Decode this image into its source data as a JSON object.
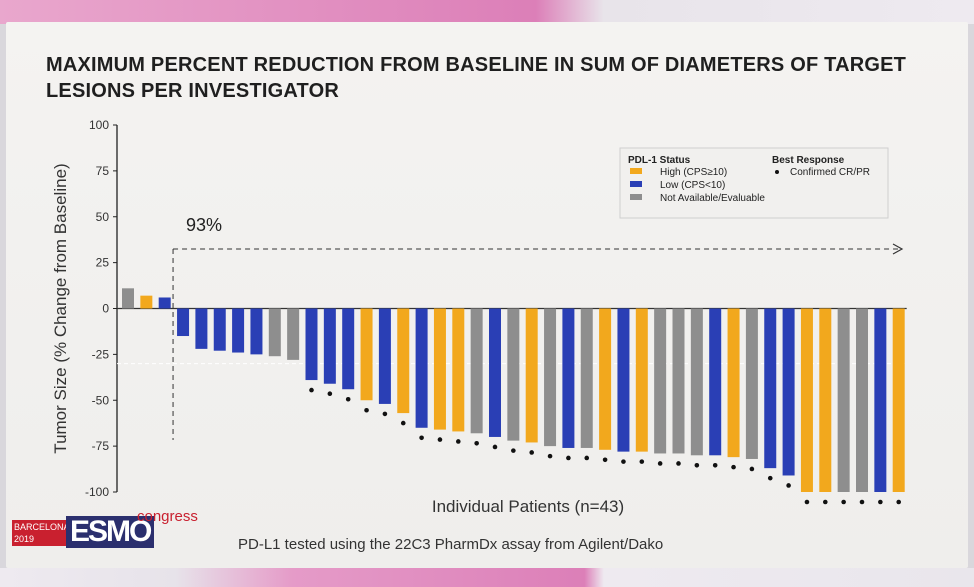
{
  "slide": {
    "title_line1": "MAXIMUM PERCENT REDUCTION FROM BASELINE IN SUM OF DIAMETERS OF TARGET",
    "title_line2": "LESIONS PER INVESTIGATOR",
    "footnote": "PD-L1 tested using the 22C3 PharmDx assay from Agilent/Dako",
    "logo": {
      "city": "BARCELONA",
      "year": "2019",
      "brand": "ESMO",
      "suffix": "congress"
    }
  },
  "colors": {
    "high": "#f2a81d",
    "low": "#2a3fb5",
    "na": "#8e8e8e",
    "dot": "#111111"
  },
  "chart_data": {
    "type": "bar",
    "ylabel": "Tumor Size (% Change from Baseline)",
    "xlabel": "Individual Patients (n=43)",
    "ylim": [
      -100,
      100
    ],
    "yticks": [
      100,
      75,
      50,
      25,
      0,
      -25,
      -50,
      -75,
      -100
    ],
    "annotation": "93%",
    "legend": {
      "placement": "top-right",
      "status_title": "PDL-1 Status",
      "response_title": "Best Response",
      "items": [
        {
          "label": "High (CPS≥10)",
          "status": "high"
        },
        {
          "label": "Low (CPS<10)",
          "status": "low"
        },
        {
          "label": "Not Available/Evaluable",
          "status": "na"
        }
      ],
      "response_item": "Confirmed CR/PR"
    },
    "bars": [
      {
        "value": 11,
        "status": "na",
        "response": false
      },
      {
        "value": 7,
        "status": "high",
        "response": false
      },
      {
        "value": 6,
        "status": "low",
        "response": false
      },
      {
        "value": -15,
        "status": "low",
        "response": false
      },
      {
        "value": -22,
        "status": "low",
        "response": false
      },
      {
        "value": -23,
        "status": "low",
        "response": false
      },
      {
        "value": -24,
        "status": "low",
        "response": false
      },
      {
        "value": -25,
        "status": "low",
        "response": false
      },
      {
        "value": -26,
        "status": "na",
        "response": false
      },
      {
        "value": -28,
        "status": "na",
        "response": false
      },
      {
        "value": -39,
        "status": "low",
        "response": true
      },
      {
        "value": -41,
        "status": "low",
        "response": true
      },
      {
        "value": -44,
        "status": "low",
        "response": true
      },
      {
        "value": -50,
        "status": "high",
        "response": true
      },
      {
        "value": -52,
        "status": "low",
        "response": true
      },
      {
        "value": -57,
        "status": "high",
        "response": true
      },
      {
        "value": -65,
        "status": "low",
        "response": true
      },
      {
        "value": -66,
        "status": "high",
        "response": true
      },
      {
        "value": -67,
        "status": "high",
        "response": true
      },
      {
        "value": -68,
        "status": "na",
        "response": true
      },
      {
        "value": -70,
        "status": "low",
        "response": true
      },
      {
        "value": -72,
        "status": "na",
        "response": true
      },
      {
        "value": -73,
        "status": "high",
        "response": true
      },
      {
        "value": -75,
        "status": "na",
        "response": true
      },
      {
        "value": -76,
        "status": "low",
        "response": true
      },
      {
        "value": -76,
        "status": "na",
        "response": true
      },
      {
        "value": -77,
        "status": "high",
        "response": true
      },
      {
        "value": -78,
        "status": "low",
        "response": true
      },
      {
        "value": -78,
        "status": "high",
        "response": true
      },
      {
        "value": -79,
        "status": "na",
        "response": true
      },
      {
        "value": -79,
        "status": "na",
        "response": true
      },
      {
        "value": -80,
        "status": "na",
        "response": true
      },
      {
        "value": -80,
        "status": "low",
        "response": true
      },
      {
        "value": -81,
        "status": "high",
        "response": true
      },
      {
        "value": -82,
        "status": "na",
        "response": true
      },
      {
        "value": -87,
        "status": "low",
        "response": true
      },
      {
        "value": -91,
        "status": "low",
        "response": true
      },
      {
        "value": -100,
        "status": "high",
        "response": true
      },
      {
        "value": -100,
        "status": "high",
        "response": true
      },
      {
        "value": -100,
        "status": "na",
        "response": true
      },
      {
        "value": -100,
        "status": "na",
        "response": true
      },
      {
        "value": -100,
        "status": "low",
        "response": true
      },
      {
        "value": -100,
        "status": "high",
        "response": true
      }
    ]
  }
}
